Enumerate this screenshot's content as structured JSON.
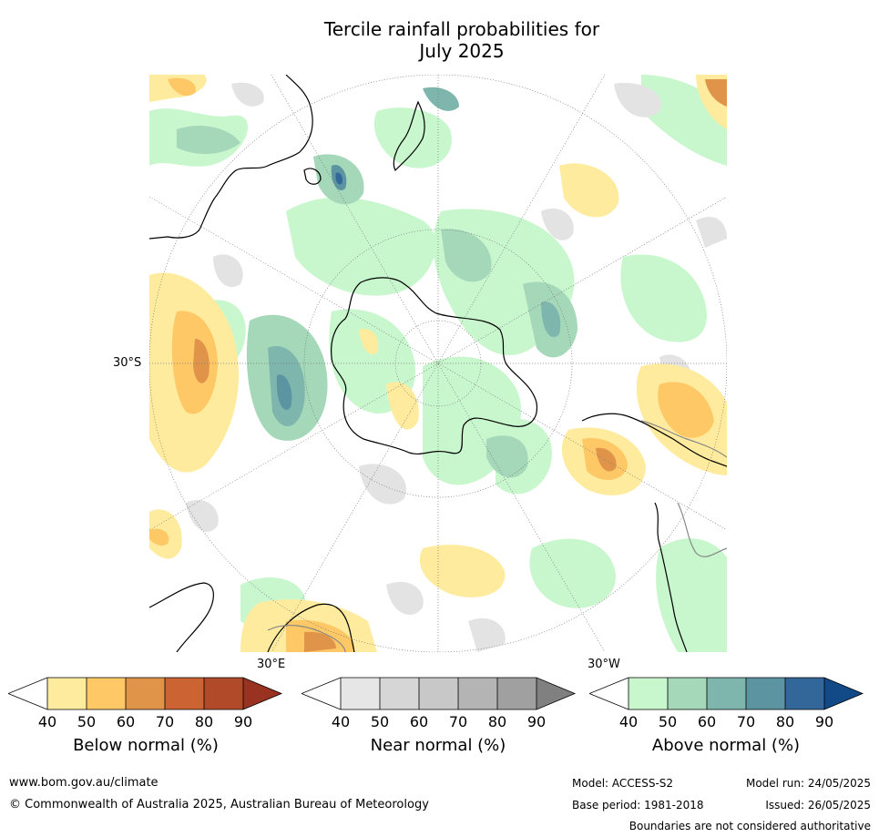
{
  "title": {
    "line1": "Tercile rainfall probabilities for",
    "line2": "July 2025"
  },
  "map": {
    "projection": "south-polar-stereographic",
    "lat_label": "30°S",
    "lon_labels": [
      "30°E",
      "30°W"
    ],
    "colors": {
      "ocean_background": "#ffffff",
      "coastline": "#000000",
      "grid": "#777777"
    }
  },
  "colorbars": [
    {
      "name": "Below normal (%)",
      "ticks": [
        "40",
        "50",
        "60",
        "70",
        "80",
        "90"
      ],
      "colors": [
        "#ffffff",
        "#feeb9e",
        "#fdc865",
        "#e0944a",
        "#cb6432",
        "#b04a28",
        "#993220"
      ]
    },
    {
      "name": "Near normal (%)",
      "ticks": [
        "40",
        "50",
        "60",
        "70",
        "80",
        "90"
      ],
      "colors": [
        "#ffffff",
        "#e6e6e6",
        "#d6d6d6",
        "#c8c8c8",
        "#b4b4b4",
        "#a0a0a0",
        "#808080"
      ]
    },
    {
      "name": "Above normal (%)",
      "ticks": [
        "40",
        "50",
        "60",
        "70",
        "80",
        "90"
      ],
      "colors": [
        "#ffffff",
        "#c9f7cd",
        "#a4d8b9",
        "#7eb6ae",
        "#5c94a2",
        "#336699",
        "#114a86"
      ]
    }
  ],
  "footer": {
    "website": "www.bom.gov.au/climate",
    "copyright": "© Commonwealth of Australia 2025, Australian Bureau of Meteorology",
    "model": "Model: ACCESS-S2",
    "base_period": "Base period: 1981-2018",
    "model_run": "Model run: 24/05/2025",
    "issued": "Issued: 26/05/2025",
    "disclaimer": "Boundaries are not considered authoritative"
  }
}
